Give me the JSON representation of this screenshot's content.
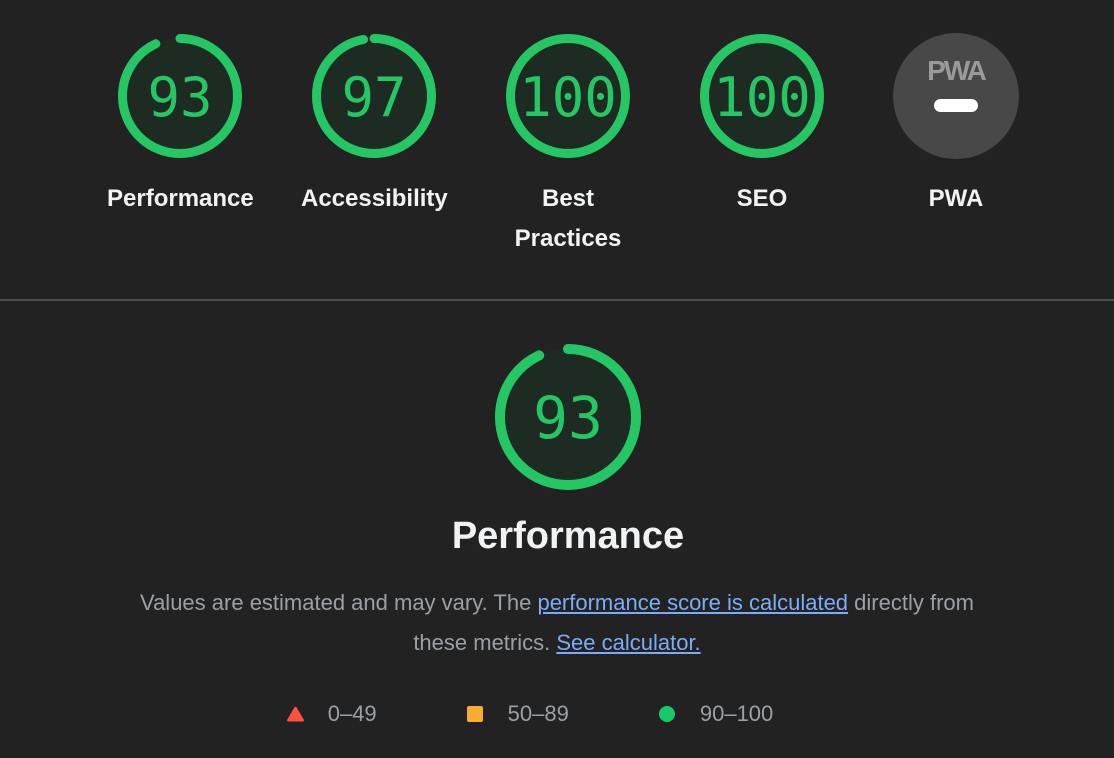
{
  "colors": {
    "background": "#222222",
    "divider": "#4c4e52",
    "gauge_green": "#25c765",
    "gauge_fill": "#1e2b23",
    "label_text": "#f1f3f4",
    "muted_text": "#9aa0a6",
    "link": "#7cacf8",
    "pwa_circle": "#484848",
    "pwa_logo": "#9a9a9a",
    "pwa_dash": "#ffffff"
  },
  "scores": [
    {
      "id": "performance",
      "label": "Performance",
      "score": 93
    },
    {
      "id": "accessibility",
      "label": "Accessibility",
      "score": 97
    },
    {
      "id": "best-practices",
      "label": "Best Practices",
      "score": 100
    },
    {
      "id": "seo",
      "label": "SEO",
      "score": 100
    },
    {
      "id": "pwa",
      "label": "PWA",
      "badge": "PWA"
    }
  ],
  "pwa_badge_text": "PWA",
  "detail": {
    "score": 93,
    "title": "Performance",
    "description": {
      "prefix": "Values are estimated and may vary. The ",
      "link1": "performance score is calculated",
      "middle": " directly from these metrics. ",
      "link2": "See calculator."
    },
    "legend": [
      {
        "shape": "triangle",
        "color": "#ff4e42",
        "label": "0–49"
      },
      {
        "shape": "square",
        "color": "#fbab34",
        "label": "50–89"
      },
      {
        "shape": "circle",
        "color": "#17ca69",
        "label": "90–100"
      }
    ]
  }
}
